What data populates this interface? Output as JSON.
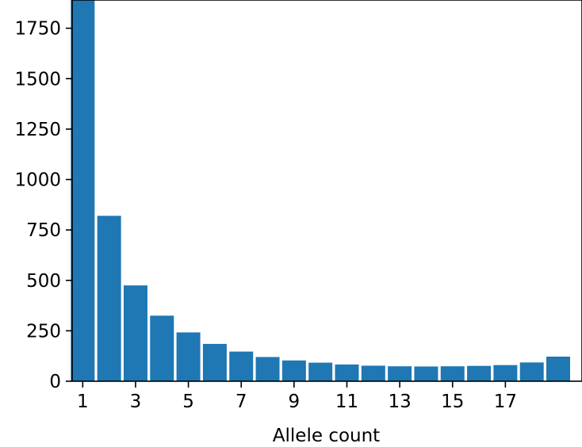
{
  "chart_data": {
    "type": "bar",
    "title": "",
    "xlabel": "Allele count",
    "ylabel": "",
    "x": [
      1,
      2,
      3,
      4,
      5,
      6,
      7,
      8,
      9,
      10,
      11,
      12,
      13,
      14,
      15,
      16,
      17,
      18,
      19
    ],
    "values": [
      1890,
      820,
      475,
      325,
      242,
      185,
      147,
      120,
      103,
      92,
      83,
      77,
      74,
      73,
      74,
      76,
      80,
      93,
      122
    ],
    "xlim": [
      0.6,
      19.9
    ],
    "ylim": [
      0,
      1890
    ],
    "xticks": [
      1,
      3,
      5,
      7,
      9,
      11,
      13,
      15,
      17
    ],
    "yticks": [
      0,
      250,
      500,
      750,
      1000,
      1250,
      1500,
      1750
    ],
    "bar_color": "#1f77b4",
    "bar_width": 0.9,
    "grid": false,
    "legend": "none"
  }
}
